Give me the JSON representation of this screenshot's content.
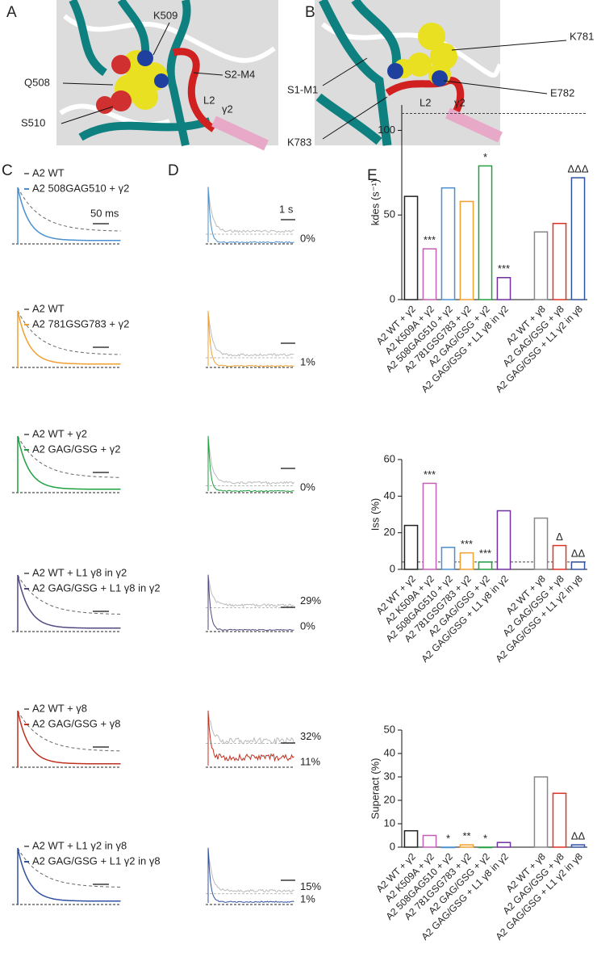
{
  "panels": [
    "A",
    "B",
    "C",
    "D",
    "E"
  ],
  "structures": {
    "A": {
      "labels": [
        "K509",
        "Q508",
        "S510",
        "S2-M4",
        "L2",
        "γ2"
      ]
    },
    "B": {
      "labels": [
        "K781",
        "S1-M1",
        "E782",
        "K783",
        "L2",
        "γ2"
      ]
    }
  },
  "scale_labels": {
    "c": "50 ms",
    "d": "1 s"
  },
  "traces": [
    {
      "legend": [
        {
          "name": "A2 WT",
          "color": "#777777"
        },
        {
          "name": "A2 508GAG510 + γ2",
          "color": "#4a90d0"
        }
      ],
      "percents": [
        {
          "label": "0%",
          "color": "#222222"
        }
      ]
    },
    {
      "legend": [
        {
          "name": "A2 WT",
          "color": "#777777"
        },
        {
          "name": "A2 781GSG783 +  γ2",
          "color": "#f0a030"
        }
      ],
      "percents": [
        {
          "label": "1%",
          "color": "#222222"
        }
      ]
    },
    {
      "legend": [
        {
          "name": "A2 WT + γ2",
          "color": "#777777"
        },
        {
          "name": "A2 GAG/GSG +  γ2",
          "color": "#20a040"
        }
      ],
      "percents": [
        {
          "label": "0%",
          "color": "#222222"
        }
      ]
    },
    {
      "legend": [
        {
          "name": "A2 WT + L1 γ8 in γ2",
          "color": "#777777"
        },
        {
          "name": "A2 GAG/GSG + L1 γ8 in γ2",
          "color": "#504a80"
        }
      ],
      "percents": [
        {
          "label": "29%",
          "color": "#222222"
        },
        {
          "label": "0%",
          "color": "#222222"
        }
      ]
    },
    {
      "legend": [
        {
          "name": "A2 WT + γ8",
          "color": "#777777"
        },
        {
          "name": "A2 GAG/GSG + γ8",
          "color": "#c03020"
        }
      ],
      "percents": [
        {
          "label": "32%",
          "color": "#b0b0b0"
        },
        {
          "label": "11%",
          "color": "#222222"
        }
      ]
    },
    {
      "legend": [
        {
          "name": "A2 WT + L1 γ2 in γ8",
          "color": "#777777"
        },
        {
          "name": "A2 GAG/GSG + L1 γ2 in γ8",
          "color": "#3050a0"
        }
      ],
      "percents": [
        {
          "label": "15%",
          "color": "#222222"
        },
        {
          "label": "1%",
          "color": "#222222"
        }
      ]
    }
  ],
  "chart_data": [
    {
      "type": "bar",
      "ylabel": "kdes (s⁻¹)",
      "categories": [
        "A2 WT + γ2",
        "A2 K509A + γ2",
        "A2 508GAG510 + γ2",
        "A2 781GSG783 + γ2",
        "A2 GAG/GSG + γ2",
        "A2 GAG/GSG + L1 γ8 in γ2",
        null,
        "A2 WT + γ8",
        "A2 GAG/GSG + γ8",
        "A2 GAG/GSG + L1 γ2 in γ8"
      ],
      "values": [
        61,
        30,
        66,
        58,
        79,
        13,
        null,
        40,
        45,
        72
      ],
      "colors": [
        "#222222",
        "#c060b0",
        "#4a90d0",
        "#f0a030",
        "#20a040",
        "#7030a0",
        null,
        "#888888",
        "#e03020",
        "#3050a0"
      ],
      "annotations": [
        null,
        "***",
        null,
        null,
        "*",
        "***",
        null,
        null,
        null,
        "ΔΔΔ"
      ],
      "reference_line": 110,
      "ylim": [
        0,
        115
      ],
      "yticks": [
        0,
        50,
        100
      ]
    },
    {
      "type": "bar",
      "ylabel": "Iss (%)",
      "categories": [
        "A2 WT + γ2",
        "A2 K509A + γ2",
        "A2 508GAG510 + γ2",
        "A2 781GSG783 + γ2",
        "A2 GAG/GSG + γ2",
        "A2 GAG/GSG + L1 γ8 in γ2",
        null,
        "A2 WT + γ8",
        "A2 GAG/GSG + γ8",
        "A2 GAG/GSG + L1 γ2 in γ8"
      ],
      "values": [
        24,
        47,
        12,
        9,
        4,
        32,
        null,
        28,
        13,
        4
      ],
      "colors": [
        "#222222",
        "#c060b0",
        "#4a90d0",
        "#f0a030",
        "#20a040",
        "#7030a0",
        null,
        "#888888",
        "#e03020",
        "#3050a0"
      ],
      "annotations": [
        null,
        "***",
        null,
        "***",
        "***",
        null,
        null,
        null,
        "Δ",
        "ΔΔ"
      ],
      "reference_line": 4,
      "ylim": [
        0,
        60
      ],
      "yticks": [
        0,
        20,
        40,
        60
      ]
    },
    {
      "type": "bar",
      "ylabel": "Superact (%)",
      "categories": [
        "A2 WT + γ2",
        "A2 K509A + γ2",
        "A2 508GAG510 + γ2",
        "A2 781GSG783 + γ2",
        "A2 GAG/GSG + γ2",
        "A2 GAG/GSG + L1 γ8 in γ2",
        null,
        "A2 WT + γ8",
        "A2 GAG/GSG + γ8",
        "A2 GAG/GSG + L1 γ2 in γ8"
      ],
      "values": [
        7,
        5,
        0,
        1,
        0,
        2,
        null,
        30,
        23,
        1
      ],
      "colors": [
        "#222222",
        "#c060b0",
        "#4a90d0",
        "#f0a030",
        "#20a040",
        "#7030a0",
        null,
        "#888888",
        "#e03020",
        "#3050a0"
      ],
      "annotations": [
        null,
        null,
        "*",
        "**",
        "*",
        null,
        null,
        null,
        null,
        "ΔΔ"
      ],
      "ylim": [
        0,
        50
      ],
      "yticks": [
        0,
        10,
        20,
        30,
        40,
        50
      ]
    }
  ]
}
